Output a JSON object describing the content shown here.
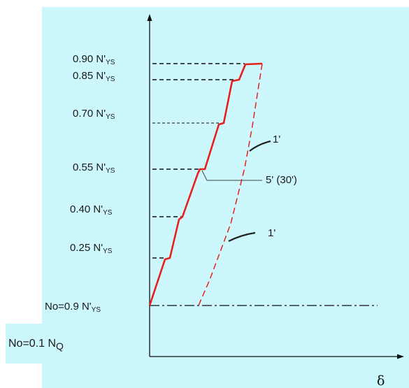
{
  "axes": {
    "x_label": "δ"
  },
  "load_levels": [
    {
      "prefix": "0.90 N'",
      "sub": "YS"
    },
    {
      "prefix": "0.85 N'",
      "sub": "YS"
    },
    {
      "prefix": "0.70 N'",
      "sub": "YS"
    },
    {
      "prefix": "0.55 N'",
      "sub": "YS"
    },
    {
      "prefix": "0.40 N'",
      "sub": "YS"
    },
    {
      "prefix": "0.25 N'",
      "sub": "YS"
    },
    {
      "prefix": "No=0.9 N'",
      "sub": "YS"
    }
  ],
  "base_load": {
    "prefix": "No=0.1 N",
    "sub": "Q"
  },
  "annotations": {
    "upper_unload": "1'",
    "hold": "5' (30')",
    "lower_unload": "1'"
  },
  "colors": {
    "background": "#ccf7fd",
    "loading_path": "#e8201c",
    "axes": "#111111"
  }
}
